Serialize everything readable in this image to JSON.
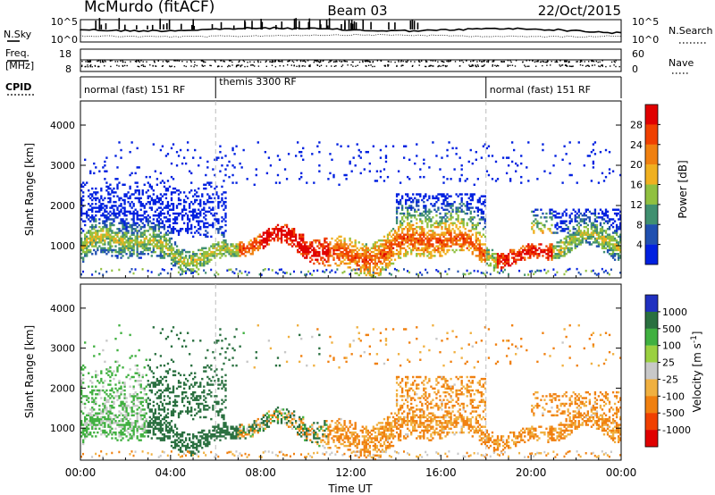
{
  "header": {
    "station": "McMurdo (fitACF)",
    "beam": "Beam 03",
    "date": "22/Oct/2015"
  },
  "noise_panel": {
    "left_label": "N.Sky",
    "right_label": "N.Search",
    "left_ticks": [
      "10^5",
      "10^0"
    ],
    "right_ticks": [
      "10^5",
      "10^0"
    ]
  },
  "freq_panel": {
    "left_label_1": "Freq.",
    "left_label_2": "[MHz]",
    "right_label": "Nave",
    "left_ticks": [
      "18",
      "8"
    ],
    "right_ticks": [
      "60",
      "0"
    ]
  },
  "cpid_panel": {
    "label": "CPID",
    "segments": [
      {
        "label": "normal (fast) 151 RF",
        "start": 0,
        "end": 6
      },
      {
        "label": "themis 3300 RF",
        "start": 6,
        "end": 18
      },
      {
        "label": "normal (fast) 151 RF",
        "start": 18,
        "end": 24
      }
    ]
  },
  "chart_data": [
    {
      "type": "heatmap",
      "title": "",
      "xlabel": "Time UT",
      "ylabel": "Slant Range [km]",
      "xlim": [
        0,
        24
      ],
      "ylim": [
        200,
        4600
      ],
      "yticks": [
        "1000",
        "2000",
        "3000",
        "4000"
      ],
      "colorbar": {
        "label": "Power [dB]",
        "ticks": [
          "4",
          "8",
          "12",
          "16",
          "20",
          "24",
          "28"
        ],
        "range": [
          0,
          32
        ],
        "colors": [
          "#0020e0",
          "#2050b0",
          "#409070",
          "#90c040",
          "#f0b020",
          "#f08010",
          "#f04000",
          "#e00000"
        ]
      }
    },
    {
      "type": "heatmap",
      "title": "",
      "xlabel": "Time UT",
      "ylabel": "Slant Range [km]",
      "xlim": [
        0,
        24
      ],
      "ylim": [
        200,
        4600
      ],
      "yticks": [
        "1000",
        "2000",
        "3000",
        "4000"
      ],
      "colorbar": {
        "label": "Velocity [m s^-1]",
        "ticks": [
          "1000",
          "500",
          "100",
          "25",
          "-25",
          "-100",
          "-500",
          "-1000"
        ],
        "colors": [
          "#2030c0",
          "#2a7040",
          "#40b040",
          "#9ad040",
          "#c8c8c8",
          "#f0b040",
          "#f08010",
          "#f04000",
          "#e00000"
        ]
      }
    }
  ],
  "x_axis": {
    "label": "Time UT",
    "ticks": [
      "00:00",
      "04:00",
      "08:00",
      "12:00",
      "16:00",
      "20:00",
      "00:00"
    ]
  }
}
